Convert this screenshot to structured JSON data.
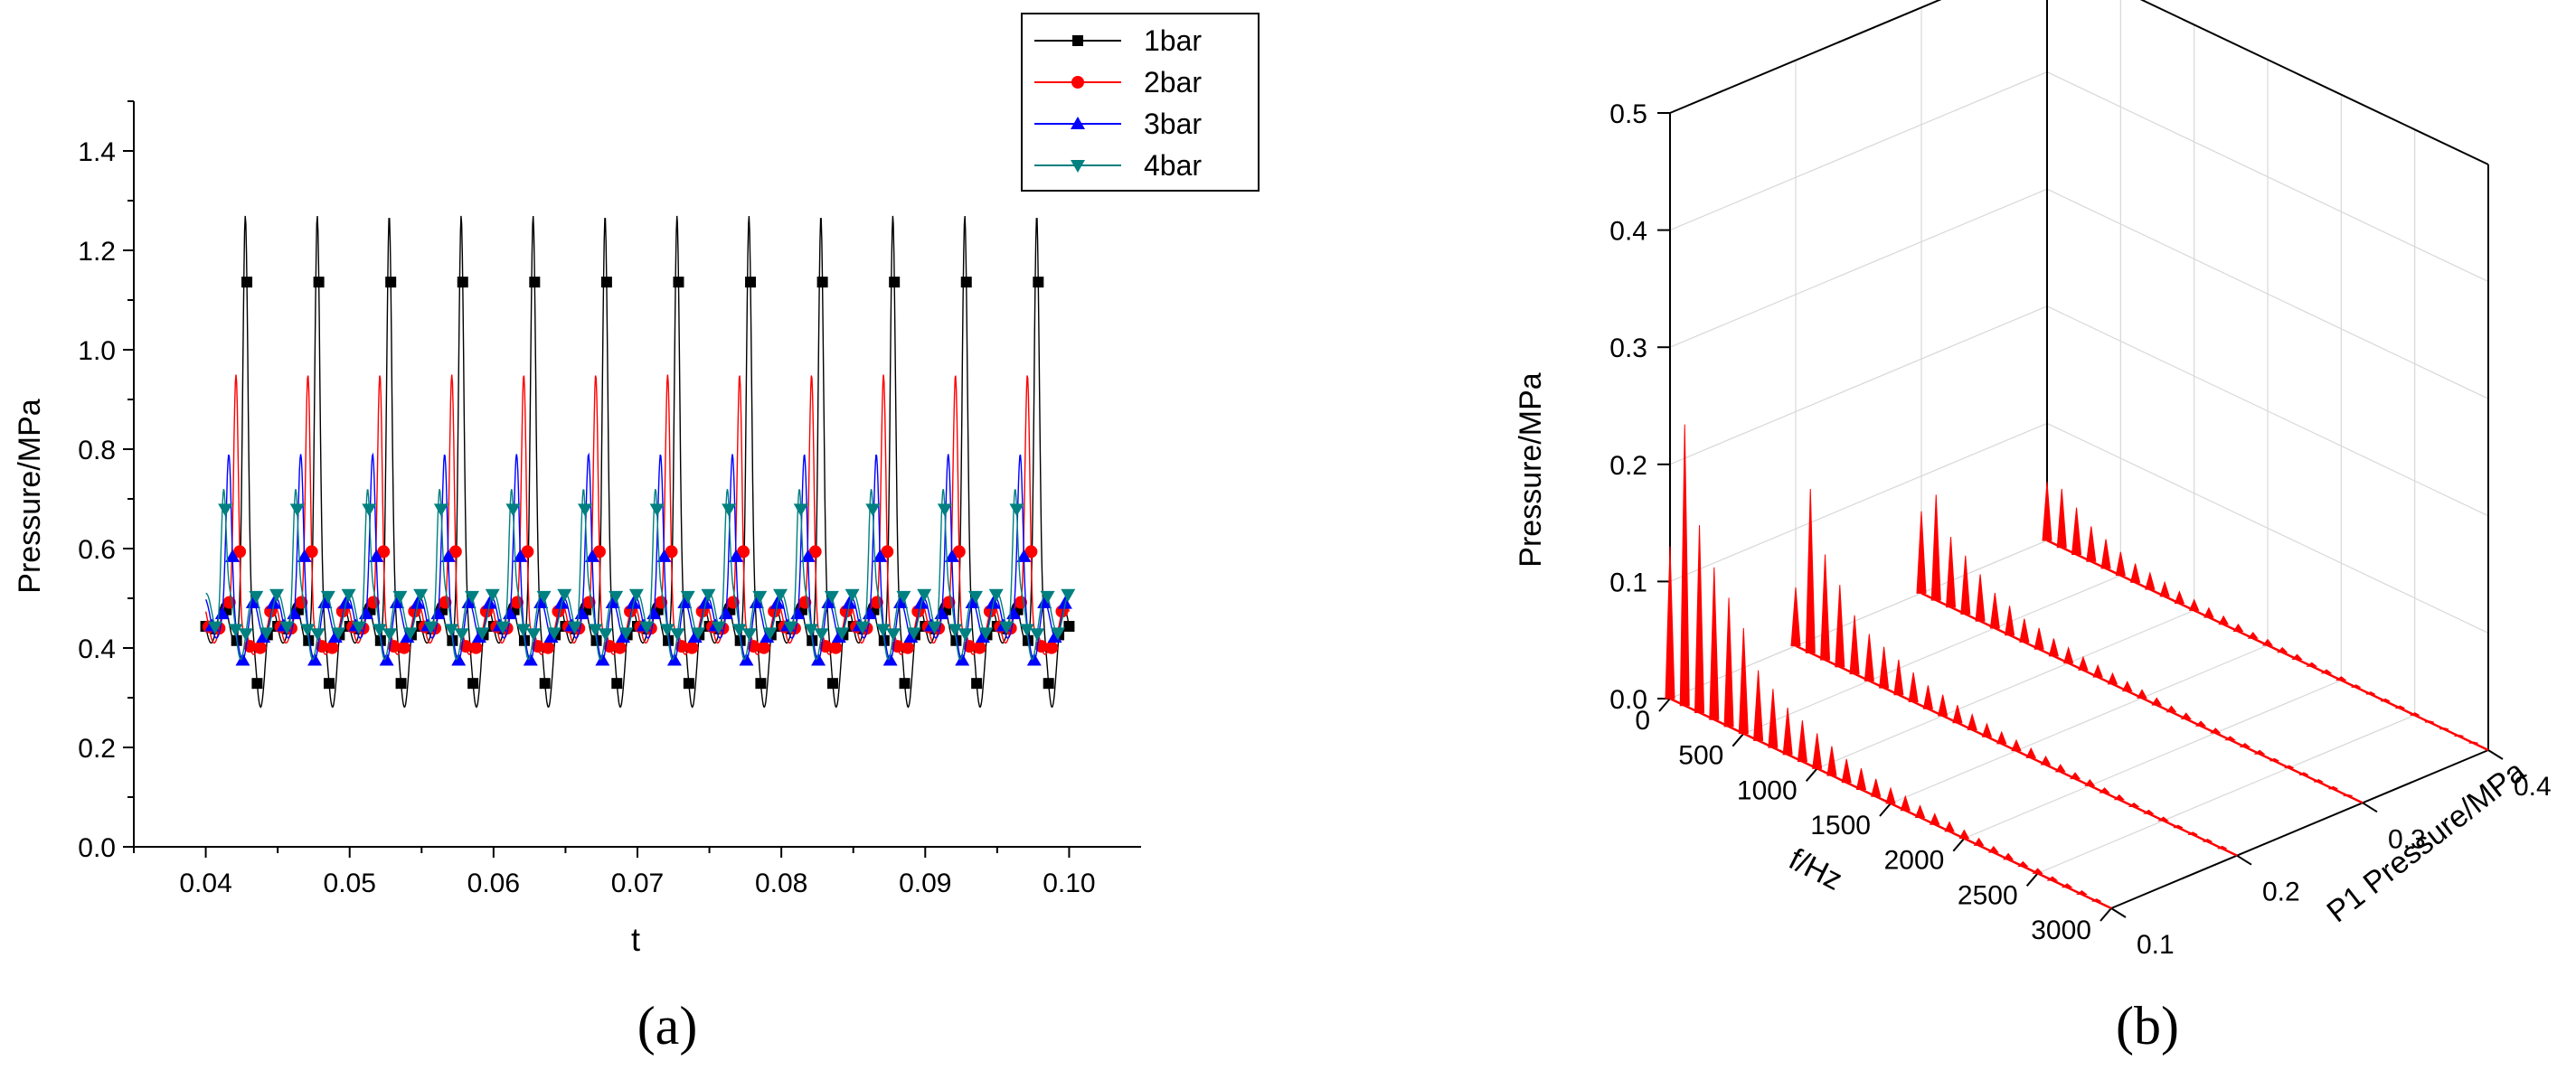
{
  "chart_data": [
    {
      "id": "a",
      "type": "line",
      "xlabel": "t",
      "ylabel": "Pressure/MPa",
      "xlim": [
        0.035,
        0.105
      ],
      "ylim": [
        0.0,
        1.5
      ],
      "x_ticks": [
        "0.04",
        "0.05",
        "0.06",
        "0.07",
        "0.08",
        "0.09",
        "0.10"
      ],
      "y_ticks": [
        "0.0",
        "0.2",
        "0.4",
        "0.6",
        "0.8",
        "1.0",
        "1.2",
        "1.4"
      ],
      "period": 0.005,
      "t_start": 0.04,
      "t_end": 0.1,
      "legend_position": "top-right",
      "series": [
        {
          "name": "1bar",
          "color": "#000000",
          "marker": "square",
          "peak": 1.27,
          "trough": 0.31,
          "mean": 0.45,
          "peak_phase": 0.55
        },
        {
          "name": "2bar",
          "color": "#ff0000",
          "marker": "circle",
          "peak": 0.95,
          "trough": 0.35,
          "mean": 0.45,
          "peak_phase": 0.42
        },
        {
          "name": "3bar",
          "color": "#0000ff",
          "marker": "triangle-up",
          "peak": 0.79,
          "trough": 0.4,
          "mean": 0.46,
          "peak_phase": 0.32
        },
        {
          "name": "4bar",
          "color": "#008080",
          "marker": "triangle-down",
          "peak": 0.72,
          "trough": 0.41,
          "mean": 0.47,
          "peak_phase": 0.25
        }
      ],
      "caption": "(a)"
    },
    {
      "id": "b",
      "type": "3d-spectrum",
      "xlabel": "f/Hz",
      "ylabel": "P1 Pressure/MPa",
      "zlabel": "Pressure/MPa",
      "x_ticks": [
        "0",
        "500",
        "1000",
        "1500",
        "2000",
        "2500",
        "3000"
      ],
      "y_ticks": [
        "0.1",
        "0.2",
        "0.3",
        "0.4"
      ],
      "z_ticks": [
        "0.0",
        "0.1",
        "0.2",
        "0.3",
        "0.4",
        "0.5"
      ],
      "xlim": [
        0,
        3000
      ],
      "ylim": [
        0.1,
        0.4
      ],
      "zlim": [
        0.0,
        0.5
      ],
      "line_color": "#ff0000",
      "series": [
        {
          "p1": 0.1,
          "freq": [
            0,
            100,
            200,
            300,
            400,
            500,
            600,
            700,
            800,
            900,
            1000,
            1100,
            1200,
            1300,
            1400,
            1500,
            1600,
            1700,
            1800,
            1900,
            2000,
            2100,
            2200,
            2300,
            2400,
            2500,
            2600,
            2700,
            2800,
            2900
          ],
          "amp": [
            0.13,
            0.24,
            0.16,
            0.13,
            0.11,
            0.09,
            0.06,
            0.05,
            0.04,
            0.035,
            0.03,
            0.025,
            0.02,
            0.018,
            0.015,
            0.013,
            0.012,
            0.01,
            0.009,
            0.008,
            0.007,
            0.006,
            0.005,
            0.005,
            0.004,
            0.004,
            0.003,
            0.003,
            0.003,
            0.002
          ]
        },
        {
          "p1": 0.2,
          "freq": [
            0,
            100,
            200,
            300,
            400,
            500,
            600,
            700,
            800,
            900,
            1000,
            1100,
            1200,
            1300,
            1400,
            1500,
            1600,
            1700,
            1800,
            1900,
            2000,
            2100,
            2200,
            2300,
            2400,
            2500,
            2600,
            2700,
            2800,
            2900
          ],
          "amp": [
            0.05,
            0.14,
            0.09,
            0.07,
            0.05,
            0.04,
            0.035,
            0.03,
            0.025,
            0.02,
            0.018,
            0.015,
            0.013,
            0.011,
            0.01,
            0.009,
            0.008,
            0.007,
            0.006,
            0.005,
            0.005,
            0.004,
            0.004,
            0.003,
            0.003,
            0.003,
            0.002,
            0.002,
            0.002,
            0.002
          ]
        },
        {
          "p1": 0.3,
          "freq": [
            0,
            100,
            200,
            300,
            400,
            500,
            600,
            700,
            800,
            900,
            1000,
            1100,
            1200,
            1300,
            1400,
            1500,
            1600,
            1700,
            1800,
            1900,
            2000,
            2100,
            2200,
            2300,
            2400,
            2500,
            2600,
            2700,
            2800,
            2900
          ],
          "amp": [
            0.07,
            0.09,
            0.06,
            0.05,
            0.04,
            0.03,
            0.025,
            0.02,
            0.018,
            0.015,
            0.013,
            0.011,
            0.01,
            0.009,
            0.008,
            0.007,
            0.006,
            0.005,
            0.005,
            0.004,
            0.004,
            0.003,
            0.003,
            0.003,
            0.002,
            0.002,
            0.002,
            0.002,
            0.002,
            0.001
          ]
        },
        {
          "p1": 0.4,
          "freq": [
            0,
            100,
            200,
            300,
            400,
            500,
            600,
            700,
            800,
            900,
            1000,
            1100,
            1200,
            1300,
            1400,
            1500,
            1600,
            1700,
            1800,
            1900,
            2000,
            2100,
            2200,
            2300,
            2400,
            2500,
            2600,
            2700,
            2800,
            2900
          ],
          "amp": [
            0.05,
            0.05,
            0.04,
            0.03,
            0.025,
            0.02,
            0.016,
            0.014,
            0.012,
            0.01,
            0.009,
            0.008,
            0.007,
            0.006,
            0.005,
            0.005,
            0.004,
            0.004,
            0.003,
            0.003,
            0.003,
            0.002,
            0.002,
            0.002,
            0.002,
            0.002,
            0.001,
            0.001,
            0.001,
            0.001
          ]
        }
      ],
      "caption": "(b)"
    }
  ]
}
